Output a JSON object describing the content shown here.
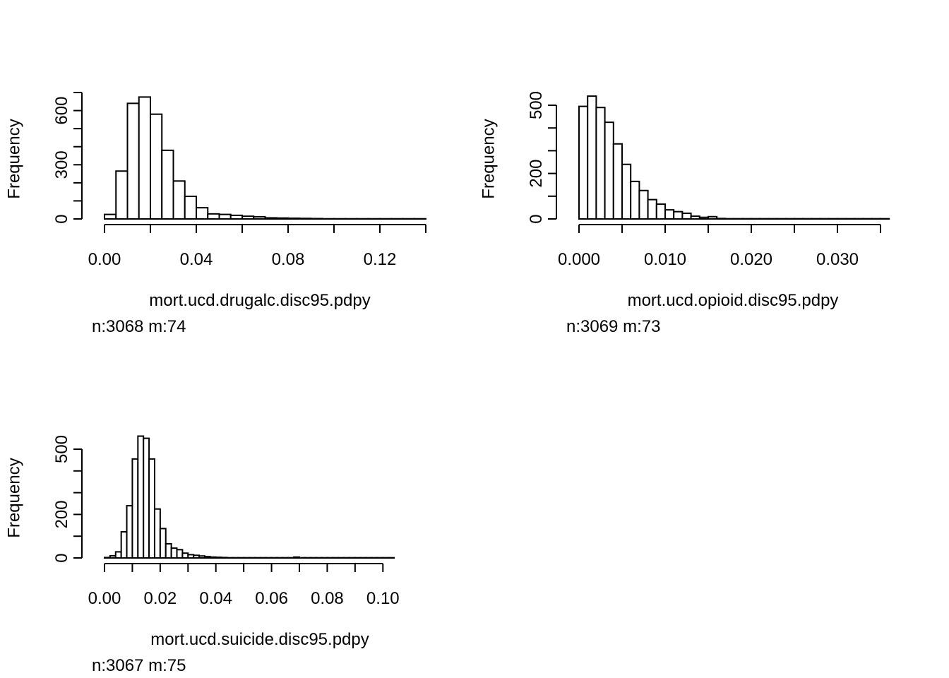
{
  "chart_data": [
    {
      "type": "bar",
      "subtype": "histogram",
      "xlabel": "mort.ucd.drugalc.disc95.pdpy",
      "ylabel": "Frequency",
      "note": "n:3068 m:74",
      "xlim": [
        0,
        0.14
      ],
      "ylim": [
        0,
        700
      ],
      "x_ticks": [
        0,
        0.02,
        0.04,
        0.06,
        0.08,
        0.1,
        0.12,
        0.14
      ],
      "x_tick_labels": [
        "0.00",
        "",
        "0.04",
        "",
        "0.08",
        "",
        "0.12",
        ""
      ],
      "y_ticks": [
        0,
        100,
        200,
        300,
        400,
        500,
        600,
        700
      ],
      "y_tick_labels": [
        "0",
        "",
        "",
        "300",
        "",
        "",
        "600",
        ""
      ],
      "bin_width": 0.005,
      "bin_start": 0,
      "values": [
        25,
        265,
        640,
        675,
        580,
        380,
        210,
        125,
        62,
        28,
        25,
        20,
        15,
        12,
        6,
        5,
        4,
        3,
        2,
        1,
        1,
        1,
        1,
        1,
        1,
        1,
        1,
        1
      ]
    },
    {
      "type": "bar",
      "subtype": "histogram",
      "xlabel": "mort.ucd.opioid.disc95.pdpy",
      "ylabel": "Frequency",
      "note": "n:3069 m:73",
      "xlim": [
        0,
        0.035
      ],
      "ylim": [
        0,
        500
      ],
      "x_ticks": [
        0,
        0.005,
        0.01,
        0.015,
        0.02,
        0.025,
        0.03,
        0.035
      ],
      "x_tick_labels": [
        "0.000",
        "",
        "0.010",
        "",
        "0.020",
        "",
        "0.030",
        ""
      ],
      "y_ticks": [
        0,
        100,
        200,
        300,
        400,
        500
      ],
      "y_tick_labels": [
        "0",
        "",
        "200",
        "",
        "",
        "500"
      ],
      "bin_width": 0.001,
      "bin_start": 0,
      "values": [
        495,
        540,
        490,
        425,
        330,
        240,
        165,
        125,
        85,
        65,
        40,
        32,
        25,
        12,
        7,
        10,
        2,
        1,
        1,
        1,
        1,
        1,
        1,
        1,
        1,
        1,
        1,
        1,
        1,
        1,
        1,
        1,
        1,
        1,
        1,
        1
      ]
    },
    {
      "type": "bar",
      "subtype": "histogram",
      "xlabel": "mort.ucd.suicide.disc95.pdpy",
      "ylabel": "Frequency",
      "note": "n:3067 m:75",
      "xlim": [
        0,
        0.105
      ],
      "ylim": [
        0,
        500
      ],
      "x_ticks": [
        0,
        0.01,
        0.02,
        0.03,
        0.04,
        0.05,
        0.06,
        0.07,
        0.08,
        0.09,
        0.1
      ],
      "x_tick_labels": [
        "0.00",
        "",
        "0.02",
        "",
        "0.04",
        "",
        "0.06",
        "",
        "0.08",
        "",
        "0.10"
      ],
      "y_ticks": [
        0,
        100,
        200,
        300,
        400,
        500
      ],
      "y_tick_labels": [
        "0",
        "",
        "200",
        "",
        "",
        "500"
      ],
      "bin_width": 0.002,
      "bin_start": 0,
      "values": [
        2,
        10,
        28,
        120,
        240,
        455,
        560,
        550,
        455,
        225,
        135,
        65,
        45,
        38,
        22,
        15,
        12,
        9,
        6,
        4,
        3,
        2,
        1,
        1,
        1,
        1,
        1,
        1,
        1,
        1,
        1,
        1,
        1,
        1,
        4,
        1,
        1,
        1,
        1,
        1,
        1,
        1,
        1,
        1,
        1,
        1,
        1,
        1,
        1,
        1,
        1,
        1
      ]
    }
  ]
}
